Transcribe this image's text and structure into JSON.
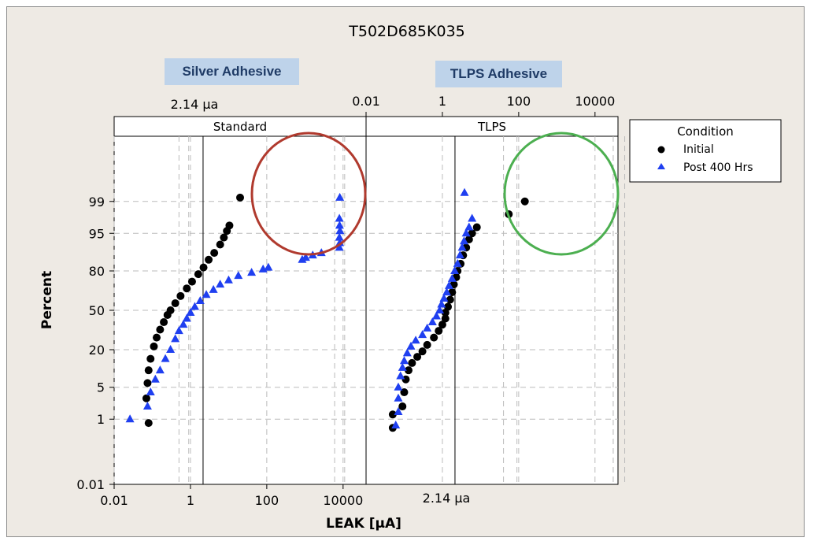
{
  "chart_data": {
    "type": "scatter",
    "title": "T502D685K035",
    "xlabel": "LEAK [μA]",
    "ylabel": "Percent",
    "x_scale": "log",
    "y_scale": "normal-probability",
    "xlim": [
      0.01,
      40000
    ],
    "ylim": [
      0.01,
      99.99
    ],
    "x_ticks": [
      "0.01",
      "1",
      "100",
      "10000"
    ],
    "y_ticks": [
      "0.01",
      "1",
      "5",
      "20",
      "50",
      "80",
      "95",
      "99"
    ],
    "reference_line": {
      "x": 2.14,
      "label": "2.14 μa"
    },
    "callouts": [
      "Silver Adhesive",
      "TLPS Adhesive"
    ],
    "panel_titles": [
      "Standard",
      "TLPS"
    ],
    "legend": {
      "title": "Condition",
      "entries": [
        {
          "name": "Initial",
          "marker": "circle",
          "color": "#000000"
        },
        {
          "name": "Post 400 Hrs",
          "marker": "triangle",
          "color": "#1f3ff0"
        }
      ]
    },
    "panels": [
      {
        "name": "Standard",
        "series": [
          {
            "name": "Initial",
            "values": [
              [
                0.08,
                0.8
              ],
              [
                0.07,
                3
              ],
              [
                0.075,
                6
              ],
              [
                0.08,
                10
              ],
              [
                0.09,
                15
              ],
              [
                0.11,
                22
              ],
              [
                0.13,
                28
              ],
              [
                0.16,
                34
              ],
              [
                0.2,
                40
              ],
              [
                0.25,
                46
              ],
              [
                0.3,
                50
              ],
              [
                0.4,
                56
              ],
              [
                0.55,
                62
              ],
              [
                0.8,
                68
              ],
              [
                1.1,
                73
              ],
              [
                1.6,
                78
              ],
              [
                2.2,
                82
              ],
              [
                3,
                86
              ],
              [
                4.2,
                89
              ],
              [
                6,
                92
              ],
              [
                7.5,
                94
              ],
              [
                9,
                95.5
              ],
              [
                10.5,
                96.5
              ],
              [
                20,
                99.2
              ]
            ]
          },
          {
            "name": "Post 400 Hrs",
            "values": [
              [
                0.026,
                1
              ],
              [
                0.075,
                2
              ],
              [
                0.09,
                4
              ],
              [
                0.12,
                7
              ],
              [
                0.16,
                10
              ],
              [
                0.22,
                15
              ],
              [
                0.3,
                20
              ],
              [
                0.4,
                27
              ],
              [
                0.5,
                33
              ],
              [
                0.65,
                38
              ],
              [
                0.8,
                43
              ],
              [
                1,
                48
              ],
              [
                1.3,
                53
              ],
              [
                1.8,
                58
              ],
              [
                2.6,
                63
              ],
              [
                4,
                67
              ],
              [
                6,
                71
              ],
              [
                10,
                74
              ],
              [
                18,
                77
              ],
              [
                40,
                79
              ],
              [
                80,
                81
              ],
              [
                110,
                82
              ],
              [
                850,
                86
              ],
              [
                1050,
                87
              ],
              [
                1600,
                88
              ],
              [
                2700,
                89
              ],
              [
                8000,
                91
              ],
              [
                8200,
                92.5
              ],
              [
                8000,
                94
              ],
              [
                8300,
                95.5
              ],
              [
                8100,
                96.5
              ],
              [
                8000,
                97.5
              ],
              [
                8200,
                99.2
              ]
            ]
          }
        ]
      },
      {
        "name": "TLPS",
        "series": [
          {
            "name": "Initial",
            "values": [
              [
                0.05,
                0.6
              ],
              [
                0.05,
                1.3
              ],
              [
                0.09,
                2
              ],
              [
                0.1,
                4
              ],
              [
                0.11,
                7
              ],
              [
                0.13,
                10
              ],
              [
                0.16,
                13
              ],
              [
                0.22,
                16
              ],
              [
                0.3,
                19
              ],
              [
                0.4,
                23
              ],
              [
                0.6,
                28
              ],
              [
                0.8,
                33
              ],
              [
                1,
                38
              ],
              [
                1.2,
                43
              ],
              [
                1.2,
                48
              ],
              [
                1.4,
                53
              ],
              [
                1.6,
                59
              ],
              [
                1.8,
                65
              ],
              [
                2,
                71
              ],
              [
                2.3,
                76
              ],
              [
                2.5,
                80
              ],
              [
                3,
                84
              ],
              [
                3.5,
                88
              ],
              [
                4.2,
                91
              ],
              [
                5,
                93.5
              ],
              [
                6,
                95
              ],
              [
                8,
                96.2
              ],
              [
                55,
                98
              ],
              [
                145,
                99
              ]
            ]
          },
          {
            "name": "Post 400 Hrs",
            "values": [
              [
                0.06,
                0.7
              ],
              [
                0.07,
                1.5
              ],
              [
                0.07,
                3
              ],
              [
                0.07,
                5
              ],
              [
                0.08,
                8
              ],
              [
                0.09,
                11
              ],
              [
                0.1,
                14
              ],
              [
                0.12,
                18
              ],
              [
                0.15,
                22
              ],
              [
                0.2,
                26
              ],
              [
                0.3,
                30
              ],
              [
                0.4,
                35
              ],
              [
                0.55,
                40
              ],
              [
                0.7,
                45
              ],
              [
                0.85,
                50
              ],
              [
                0.95,
                55
              ],
              [
                1.1,
                60
              ],
              [
                1.3,
                65
              ],
              [
                1.5,
                70
              ],
              [
                1.8,
                75
              ],
              [
                2.1,
                80
              ],
              [
                2.5,
                84
              ],
              [
                2.9,
                88
              ],
              [
                3.3,
                91
              ],
              [
                3.7,
                93
              ],
              [
                4.2,
                95
              ],
              [
                5,
                96.2
              ],
              [
                6,
                97.5
              ],
              [
                3.8,
                99.4
              ]
            ]
          }
        ]
      }
    ]
  }
}
